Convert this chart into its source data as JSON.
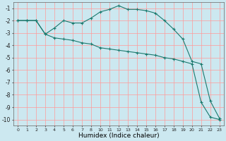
{
  "xlabel": "Humidex (Indice chaleur)",
  "bg_color": "#cce8f0",
  "grid_color": "#ff9999",
  "line_color": "#1a7a6e",
  "x_labels": [
    "0",
    "1",
    "2",
    "3",
    "4",
    "5",
    "6",
    "7",
    "8",
    "10",
    "11",
    "12",
    "13",
    "14",
    "15",
    "16",
    "17",
    "18",
    "19",
    "20",
    "21",
    "22",
    "23"
  ],
  "line1_y": [
    -2.0,
    -2.0,
    -2.0,
    -3.1,
    -2.6,
    -2.0,
    -2.2,
    -2.2,
    -1.8,
    -1.3,
    -1.1,
    -0.8,
    -1.1,
    -1.1,
    -1.2,
    -1.4,
    -2.0,
    -2.7,
    -3.5,
    -5.3,
    -5.5,
    -8.5,
    -9.9
  ],
  "line2_y": [
    -2.0,
    -2.0,
    -2.0,
    -3.1,
    -3.4,
    -3.5,
    -3.6,
    -3.8,
    -3.9,
    -4.2,
    -4.3,
    -4.4,
    -4.5,
    -4.6,
    -4.7,
    -4.8,
    -5.0,
    -5.1,
    -5.3,
    -5.5,
    -8.6,
    -9.8,
    -10.0
  ],
  "ylim": [
    -10.5,
    -0.5
  ],
  "yticks": [
    -1,
    -2,
    -3,
    -4,
    -5,
    -6,
    -7,
    -8,
    -9,
    -10
  ]
}
